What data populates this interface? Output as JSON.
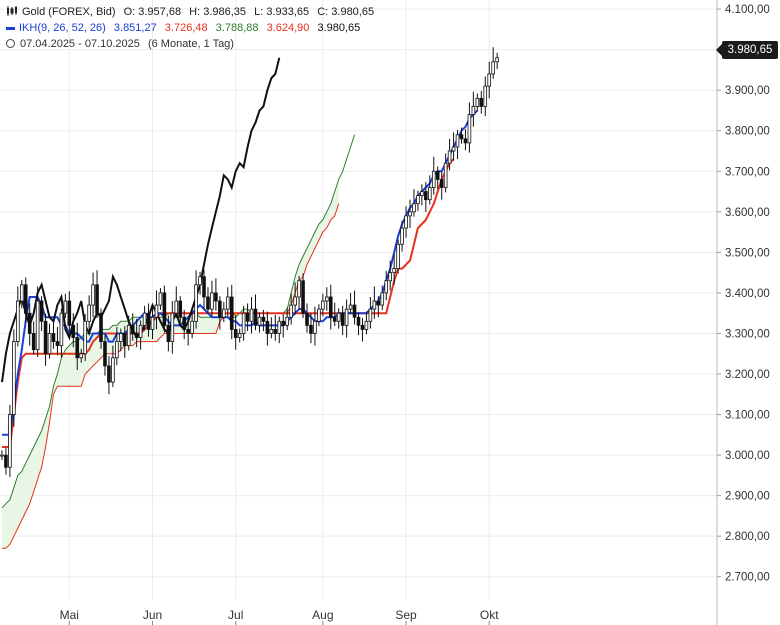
{
  "header": {
    "instrument": "Gold (FOREX, Bid)",
    "open": "O: 3.957,68",
    "high": "H: 3.986,35",
    "low": "L: 3.933,65",
    "close": "C: 3.980,65",
    "indicator_name": "IKH(9, 26, 52, 26)",
    "ikh_values": [
      "3.851,27",
      "3.726,48",
      "3.788,88",
      "3.624,90",
      "3.980,65"
    ],
    "date_range": "07.04.2025 - 07.10.2025",
    "period": "(6 Monate, 1 Tag)"
  },
  "price_tag": "3.980,65",
  "colors": {
    "tenkan": "#1a3fd6",
    "kijun": "#e8301c",
    "span_a": "#2e7d2e",
    "span_b": "#e8301c",
    "chikou": "#111111",
    "cloud_fill": "#e9f6e6",
    "candles": "#111111",
    "grid": "#ececec"
  },
  "chart_data": {
    "type": "candlestick",
    "ylim": [
      2650,
      4120
    ],
    "y_ticks": [
      {
        "value": 4100,
        "label": "4.100,00"
      },
      {
        "value": 4000,
        "label": "4.000,00"
      },
      {
        "value": 3900,
        "label": "3.900,00"
      },
      {
        "value": 3800,
        "label": "3.800,00"
      },
      {
        "value": 3700,
        "label": "3.700,00"
      },
      {
        "value": 3600,
        "label": "3.600,00"
      },
      {
        "value": 3500,
        "label": "3.500,00"
      },
      {
        "value": 3400,
        "label": "3.400,00"
      },
      {
        "value": 3300,
        "label": "3.300,00"
      },
      {
        "value": 3200,
        "label": "3.200,00"
      },
      {
        "value": 3100,
        "label": "3.100,00"
      },
      {
        "value": 3000,
        "label": "3.000,00"
      },
      {
        "value": 2900,
        "label": "2.900,00"
      },
      {
        "value": 2800,
        "label": "2.800,00"
      },
      {
        "value": 2700,
        "label": "2.700,00"
      }
    ],
    "x_ticks": [
      {
        "index": 17,
        "label": "Mai"
      },
      {
        "index": 38,
        "label": "Jun"
      },
      {
        "index": 59,
        "label": "Jul"
      },
      {
        "index": 81,
        "label": "Aug"
      },
      {
        "index": 102,
        "label": "Sep"
      },
      {
        "index": 123,
        "label": "Okt"
      }
    ],
    "n_index": 181,
    "closes": [
      3000,
      2970,
      3100,
      3280,
      3380,
      3420,
      3350,
      3300,
      3260,
      3380,
      3330,
      3250,
      3300,
      3280,
      3270,
      3350,
      3380,
      3320,
      3290,
      3240,
      3250,
      3330,
      3370,
      3420,
      3350,
      3280,
      3220,
      3180,
      3240,
      3280,
      3300,
      3270,
      3320,
      3300,
      3290,
      3320,
      3350,
      3310,
      3340,
      3370,
      3400,
      3320,
      3280,
      3350,
      3380,
      3340,
      3310,
      3300,
      3330,
      3420,
      3440,
      3390,
      3360,
      3400,
      3380,
      3340,
      3360,
      3390,
      3310,
      3290,
      3300,
      3350,
      3330,
      3360,
      3320,
      3340,
      3330,
      3300,
      3310,
      3300,
      3330,
      3320,
      3340,
      3370,
      3390,
      3430,
      3350,
      3320,
      3300,
      3330,
      3360,
      3380,
      3390,
      3340,
      3330,
      3350,
      3320,
      3360,
      3370,
      3340,
      3320,
      3310,
      3330,
      3360,
      3380,
      3370,
      3400,
      3430,
      3450,
      3460,
      3520,
      3560,
      3590,
      3600,
      3620,
      3640,
      3650,
      3630,
      3660,
      3700,
      3680,
      3660,
      3720,
      3750,
      3760,
      3790,
      3780,
      3770,
      3840,
      3860,
      3880,
      3860,
      3910,
      3940,
      3970,
      3980
    ],
    "tenkan": [
      3050,
      3050,
      3050,
      3120,
      3200,
      3260,
      3330,
      3390,
      3390,
      3390,
      3370,
      3340,
      3340,
      3340,
      3340,
      3320,
      3320,
      3300,
      3300,
      3300,
      3290,
      3280,
      3280,
      3300,
      3300,
      3300,
      3300,
      3280,
      3280,
      3300,
      3300,
      3300,
      3310,
      3320,
      3330,
      3340,
      3350,
      3340,
      3340,
      3350,
      3350,
      3340,
      3330,
      3320,
      3320,
      3320,
      3330,
      3340,
      3350,
      3360,
      3370,
      3360,
      3350,
      3340,
      3340,
      3340,
      3340,
      3340,
      3330,
      3330,
      3320,
      3320,
      3320,
      3320,
      3330,
      3320,
      3320,
      3320,
      3320,
      3320,
      3320,
      3320,
      3330,
      3340,
      3350,
      3360,
      3360,
      3350,
      3340,
      3330,
      3330,
      3330,
      3340,
      3340,
      3340,
      3350,
      3350,
      3350,
      3350,
      3350,
      3350,
      3350,
      3350,
      3360,
      3370,
      3380,
      3400,
      3430,
      3460,
      3500,
      3540,
      3570,
      3590,
      3610,
      3620,
      3640,
      3650,
      3660,
      3670,
      3690,
      3700,
      3700,
      3720,
      3740,
      3760,
      3780,
      3800,
      3810,
      3830,
      3840,
      3850
    ],
    "kijun": [
      3020,
      3020,
      3020,
      3100,
      3180,
      3240,
      3250,
      3250,
      3250,
      3250,
      3250,
      3250,
      3250,
      3250,
      3250,
      3250,
      3250,
      3250,
      3250,
      3250,
      3250,
      3250,
      3260,
      3280,
      3290,
      3300,
      3300,
      3300,
      3300,
      3300,
      3300,
      3300,
      3300,
      3300,
      3300,
      3300,
      3310,
      3320,
      3330,
      3340,
      3350,
      3350,
      3350,
      3350,
      3350,
      3350,
      3350,
      3350,
      3350,
      3350,
      3350,
      3350,
      3350,
      3350,
      3350,
      3350,
      3350,
      3350,
      3350,
      3350,
      3350,
      3350,
      3350,
      3350,
      3350,
      3350,
      3350,
      3350,
      3350,
      3350,
      3350,
      3350,
      3350,
      3350,
      3350,
      3350,
      3350,
      3350,
      3350,
      3350,
      3350,
      3350,
      3350,
      3350,
      3350,
      3350,
      3350,
      3350,
      3350,
      3350,
      3350,
      3350,
      3350,
      3350,
      3350,
      3350,
      3350,
      3350,
      3390,
      3430,
      3460,
      3460,
      3470,
      3480,
      3520,
      3560,
      3570,
      3580,
      3600,
      3620,
      3650,
      3680,
      3700,
      3720,
      3730
    ],
    "span_a": [
      2870,
      2880,
      2890,
      2920,
      2950,
      2960,
      2980,
      3000,
      3020,
      3040,
      3060,
      3090,
      3120,
      3170,
      3200,
      3240,
      3260,
      3270,
      3280,
      3280,
      3290,
      3300,
      3300,
      3300,
      3300,
      3310,
      3310,
      3310,
      3320,
      3320,
      3330,
      3330,
      3330,
      3340,
      3340,
      3340,
      3340,
      3330,
      3330,
      3340,
      3340,
      3340,
      3350,
      3350,
      3350,
      3350,
      3350,
      3350,
      3350,
      3350,
      3340,
      3340,
      3340,
      3340,
      3340,
      3340,
      3340,
      3340,
      3340,
      3340,
      3350,
      3360,
      3360,
      3350,
      3350,
      3350,
      3350,
      3350,
      3350,
      3350,
      3350,
      3350,
      3360,
      3400,
      3440,
      3470,
      3490,
      3510,
      3530,
      3550,
      3570,
      3580,
      3600,
      3620,
      3650,
      3680,
      3700,
      3730,
      3760,
      3790
    ],
    "span_b": [
      2770,
      2770,
      2780,
      2800,
      2820,
      2840,
      2860,
      2880,
      2910,
      2940,
      2970,
      3020,
      3080,
      3150,
      3170,
      3170,
      3170,
      3170,
      3170,
      3170,
      3170,
      3200,
      3210,
      3220,
      3230,
      3240,
      3250,
      3250,
      3250,
      3250,
      3260,
      3270,
      3270,
      3270,
      3280,
      3280,
      3280,
      3280,
      3280,
      3280,
      3290,
      3300,
      3300,
      3300,
      3300,
      3300,
      3300,
      3300,
      3300,
      3300,
      3300,
      3300,
      3300,
      3300,
      3300,
      3330,
      3340,
      3340,
      3340,
      3350,
      3350,
      3350,
      3350,
      3350,
      3350,
      3350,
      3350,
      3350,
      3350,
      3350,
      3350,
      3350,
      3350,
      3370,
      3400,
      3430,
      3440,
      3470,
      3490,
      3510,
      3530,
      3550,
      3560,
      3580,
      3590,
      3620
    ],
    "chikou": [
      3180,
      3250,
      3300,
      3330,
      3360,
      3390,
      3350,
      3320,
      3350,
      3400,
      3420,
      3380,
      3340,
      3330,
      3370,
      3390,
      3310,
      3290,
      3330,
      3350,
      3380,
      3320,
      3300,
      3330,
      3350,
      3340,
      3360,
      3380,
      3440,
      3420,
      3390,
      3360,
      3330,
      3310,
      3290,
      3300,
      3320,
      3340,
      3370,
      3350,
      3330,
      3310,
      3300,
      3330,
      3350,
      3320,
      3310,
      3330,
      3360,
      3390,
      3420,
      3470,
      3520,
      3560,
      3600,
      3640,
      3690,
      3680,
      3660,
      3700,
      3720,
      3710,
      3760,
      3800,
      3820,
      3850,
      3860,
      3900,
      3930,
      3940,
      3980
    ]
  }
}
